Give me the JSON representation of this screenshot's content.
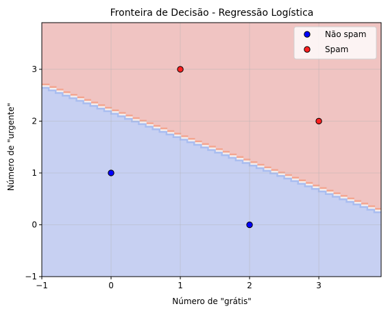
{
  "chart_data": {
    "type": "scatter",
    "title": "Fronteira de Decisão - Regressão Logística",
    "xlabel": "Número de \"grátis\"",
    "ylabel": "Número de \"urgente\"",
    "xlim": [
      -1,
      3.9
    ],
    "ylim": [
      -1,
      3.9
    ],
    "xticks": [
      -1,
      0,
      1,
      2,
      3
    ],
    "yticks": [
      -1,
      0,
      1,
      2,
      3
    ],
    "grid": true,
    "legend_position": "top-right",
    "decision_boundary": {
      "description": "y = 2.2 - 0.5 * x",
      "slope": -0.5,
      "intercept": 2.2,
      "below_class": "Não spam",
      "above_class": "Spam"
    },
    "series": [
      {
        "name": "Não spam",
        "color": "#0000ff",
        "region_color": "#c7d0f2",
        "points": [
          {
            "x": 0,
            "y": 1
          },
          {
            "x": 2,
            "y": 0
          }
        ]
      },
      {
        "name": "Spam",
        "color": "#ff2020",
        "region_color": "#f0c4c2",
        "points": [
          {
            "x": 1,
            "y": 3
          },
          {
            "x": 3,
            "y": 2
          }
        ]
      }
    ]
  }
}
